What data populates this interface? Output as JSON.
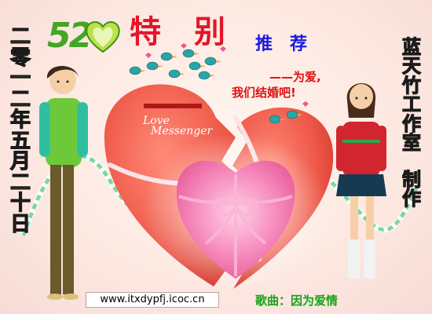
{
  "logo": {
    "number": "52"
  },
  "title": {
    "special": "特别",
    "recommend": "推荐"
  },
  "message": {
    "line1": "——为爱,",
    "line2": "我们结婚吧!"
  },
  "date_text": [
    "二",
    "零",
    "一",
    "二",
    "年",
    "五",
    "月",
    "二",
    "十",
    "日"
  ],
  "studio_text": [
    "蓝",
    "天",
    "竹",
    "工",
    "作",
    "室",
    "",
    "制",
    "作"
  ],
  "heart_label": {
    "line1": "Love",
    "line2": "Messenger"
  },
  "footer": {
    "url": "www.itxdypfj.icoc.cn",
    "song": "歌曲：因为爱情"
  },
  "colors": {
    "heart_red": "#ef5a4a",
    "pink_heart": "#f57ab0",
    "ribbon_green": "#7fd6a0",
    "title_red": "#e4162a",
    "recommend_blue": "#1a1ae0",
    "vertical_yellow": "#f7e300",
    "song_green": "#16a31a"
  }
}
